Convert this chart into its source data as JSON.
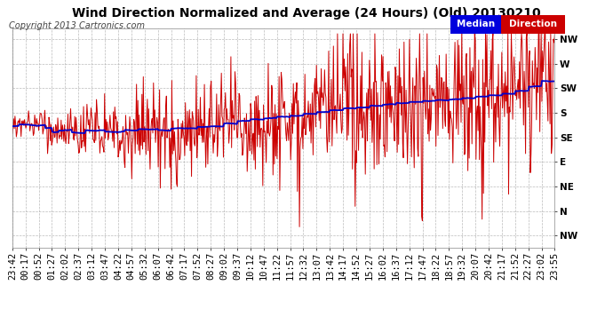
{
  "title": "Wind Direction Normalized and Average (24 Hours) (Old) 20130210",
  "copyright": "Copyright 2013 Cartronics.com",
  "legend_median_color": "#0000dd",
  "legend_direction_color": "#cc0000",
  "legend_median_label": "Median",
  "legend_direction_label": "Direction",
  "background_color": "#ffffff",
  "plot_bg_color": "#ffffff",
  "grid_color": "#aaaaaa",
  "ytick_labels": [
    "NW",
    "W",
    "SW",
    "S",
    "SE",
    "E",
    "NE",
    "N",
    "NW"
  ],
  "ytick_values": [
    315,
    270,
    225,
    180,
    135,
    90,
    45,
    0,
    -45
  ],
  "ylim": [
    -68,
    335
  ],
  "xtick_labels": [
    "23:42",
    "00:17",
    "00:52",
    "01:27",
    "02:02",
    "02:37",
    "03:12",
    "03:47",
    "04:22",
    "04:57",
    "05:32",
    "06:07",
    "06:42",
    "07:17",
    "07:52",
    "08:27",
    "09:02",
    "09:37",
    "10:12",
    "10:47",
    "11:22",
    "11:57",
    "12:32",
    "13:07",
    "13:42",
    "14:17",
    "14:52",
    "15:27",
    "16:02",
    "16:37",
    "17:12",
    "17:47",
    "18:22",
    "18:57",
    "19:32",
    "20:07",
    "20:42",
    "21:17",
    "21:52",
    "22:27",
    "23:02",
    "23:55"
  ],
  "red_line_color": "#cc0000",
  "blue_line_color": "#0000cc",
  "title_fontsize": 10,
  "copyright_fontsize": 7,
  "tick_fontsize": 7.5
}
